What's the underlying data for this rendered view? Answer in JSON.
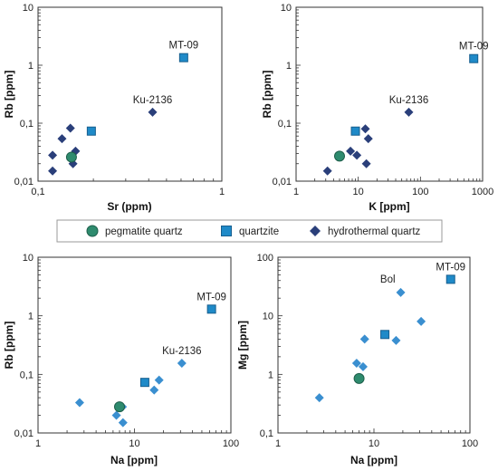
{
  "legend": {
    "entries": [
      {
        "label": "pegmatite quartz",
        "marker": "circle",
        "color": "#2e8b6e"
      },
      {
        "label": "quartzite",
        "marker": "square",
        "color": "#1f8ac8"
      },
      {
        "label": "hydrothermal quartz",
        "marker": "diamond",
        "color": "#2a3f7a"
      }
    ]
  },
  "chart_data": [
    {
      "type": "scatter",
      "xlabel": "Sr (ppm)",
      "ylabel": "Rb [ppm]",
      "xscale": "log",
      "yscale": "log",
      "xlim": [
        0.1,
        1
      ],
      "ylim": [
        0.01,
        10
      ],
      "xticks": [
        {
          "v": 0.1,
          "label": "0,1"
        },
        {
          "v": 1,
          "label": "1"
        }
      ],
      "yticks": [
        {
          "v": 0.01,
          "label": "0,01"
        },
        {
          "v": 0.1,
          "label": "0,1"
        },
        {
          "v": 1,
          "label": "1"
        },
        {
          "v": 10,
          "label": "10"
        }
      ],
      "grid": false,
      "series": [
        {
          "marker": "diamond",
          "color": "#2a3f7a",
          "points": [
            [
              0.12,
              0.028
            ],
            [
              0.12,
              0.015
            ],
            [
              0.135,
              0.054
            ],
            [
              0.15,
              0.082
            ],
            [
              0.16,
              0.033
            ],
            [
              0.155,
              0.02
            ]
          ]
        },
        {
          "marker": "diamond",
          "color": "#2a3f7a",
          "points": [
            [
              0.42,
              0.155
            ]
          ]
        },
        {
          "marker": "square",
          "color": "#1f8ac8",
          "points": [
            [
              0.195,
              0.073
            ],
            [
              0.62,
              1.35
            ]
          ]
        },
        {
          "marker": "circle",
          "color": "#2e8b6e",
          "points": [
            [
              0.152,
              0.026
            ]
          ]
        }
      ],
      "annotations": [
        {
          "text": "MT-09",
          "x": 0.62,
          "y": 1.35,
          "pos": "above"
        },
        {
          "text": "Ku-2136",
          "x": 0.42,
          "y": 0.155,
          "pos": "above"
        }
      ]
    },
    {
      "type": "scatter",
      "xlabel": "K [ppm]",
      "ylabel": "Rb [ppm]",
      "xscale": "log",
      "yscale": "log",
      "xlim": [
        1,
        1000
      ],
      "ylim": [
        0.01,
        10
      ],
      "xticks": [
        {
          "v": 1,
          "label": "1"
        },
        {
          "v": 10,
          "label": "10"
        },
        {
          "v": 100,
          "label": "100"
        },
        {
          "v": 1000,
          "label": "1000"
        }
      ],
      "yticks": [
        {
          "v": 0.01,
          "label": "0,01"
        },
        {
          "v": 0.1,
          "label": "0,1"
        },
        {
          "v": 1,
          "label": "1"
        },
        {
          "v": 10,
          "label": "10"
        }
      ],
      "grid": false,
      "series": [
        {
          "marker": "diamond",
          "color": "#2a3f7a",
          "points": [
            [
              3.2,
              0.015
            ],
            [
              7.5,
              0.033
            ],
            [
              9.5,
              0.028
            ],
            [
              13,
              0.08
            ],
            [
              14.5,
              0.054
            ],
            [
              13.5,
              0.02
            ],
            [
              65,
              0.155
            ]
          ]
        },
        {
          "marker": "square",
          "color": "#1f8ac8",
          "points": [
            [
              9,
              0.073
            ],
            [
              720,
              1.3
            ]
          ]
        },
        {
          "marker": "circle",
          "color": "#2e8b6e",
          "points": [
            [
              5,
              0.027
            ]
          ]
        }
      ],
      "annotations": [
        {
          "text": "MT-09",
          "x": 720,
          "y": 1.3,
          "pos": "above"
        },
        {
          "text": "Ku-2136",
          "x": 65,
          "y": 0.155,
          "pos": "above"
        }
      ]
    },
    {
      "type": "scatter",
      "xlabel": "Na [ppm]",
      "ylabel": "Rb [ppm]",
      "xscale": "log",
      "yscale": "log",
      "xlim": [
        1,
        100
      ],
      "ylim": [
        0.01,
        10
      ],
      "xticks": [
        {
          "v": 1,
          "label": "1"
        },
        {
          "v": 10,
          "label": "10"
        },
        {
          "v": 100,
          "label": "100"
        }
      ],
      "yticks": [
        {
          "v": 0.01,
          "label": "0,01"
        },
        {
          "v": 0.1,
          "label": "0,1"
        },
        {
          "v": 1,
          "label": "1"
        },
        {
          "v": 10,
          "label": "10"
        }
      ],
      "grid": false,
      "series": [
        {
          "marker": "diamond",
          "color": "#3a8fd0",
          "points": [
            [
              2.7,
              0.033
            ],
            [
              6.5,
              0.02
            ],
            [
              7.5,
              0.028
            ],
            [
              7.6,
              0.015
            ],
            [
              16,
              0.054
            ],
            [
              18,
              0.08
            ],
            [
              31,
              0.155
            ]
          ]
        },
        {
          "marker": "square",
          "color": "#1f8ac8",
          "points": [
            [
              12.8,
              0.073
            ],
            [
              63,
              1.3
            ]
          ]
        },
        {
          "marker": "circle",
          "color": "#2e8b6e",
          "points": [
            [
              7,
              0.028
            ]
          ]
        }
      ],
      "annotations": [
        {
          "text": "MT-09",
          "x": 63,
          "y": 1.3,
          "pos": "above"
        },
        {
          "text": "Ku-2136",
          "x": 31,
          "y": 0.155,
          "pos": "above"
        }
      ]
    },
    {
      "type": "scatter",
      "xlabel": "Na [ppm]",
      "ylabel": "Mg [ppm]",
      "xscale": "log",
      "yscale": "log",
      "xlim": [
        1,
        100
      ],
      "ylim": [
        0.1,
        100
      ],
      "xticks": [
        {
          "v": 1,
          "label": "1"
        },
        {
          "v": 10,
          "label": "10"
        },
        {
          "v": 100,
          "label": "100"
        }
      ],
      "yticks": [
        {
          "v": 0.1,
          "label": "0,1"
        },
        {
          "v": 1,
          "label": "1"
        },
        {
          "v": 10,
          "label": "10"
        },
        {
          "v": 100,
          "label": "100"
        }
      ],
      "grid": false,
      "series": [
        {
          "marker": "diamond",
          "color": "#3a8fd0",
          "points": [
            [
              2.7,
              0.4
            ],
            [
              6.6,
              1.55
            ],
            [
              7.7,
              1.35
            ],
            [
              8,
              4
            ],
            [
              17,
              3.8
            ],
            [
              19,
              25
            ],
            [
              31,
              8
            ]
          ]
        },
        {
          "marker": "square",
          "color": "#1f8ac8",
          "points": [
            [
              13,
              4.8
            ],
            [
              63,
              42
            ]
          ]
        },
        {
          "marker": "circle",
          "color": "#2e8b6e",
          "points": [
            [
              7,
              0.85
            ]
          ]
        }
      ],
      "annotations": [
        {
          "text": "MT-09",
          "x": 63,
          "y": 42,
          "pos": "above"
        },
        {
          "text": "Bol",
          "x": 19,
          "y": 25,
          "pos": "above-left"
        }
      ]
    }
  ]
}
